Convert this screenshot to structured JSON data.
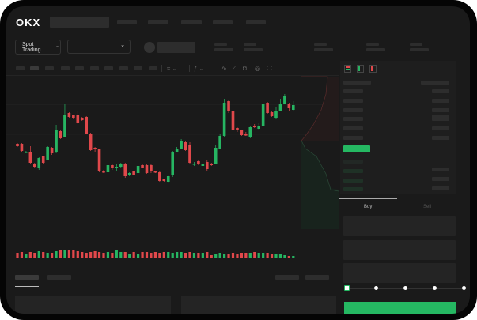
{
  "header": {
    "logo": "OKX",
    "nav_items": [
      "",
      "",
      "",
      "",
      ""
    ]
  },
  "toolbar": {
    "market_selector": "Spot Trading",
    "chevron": "⌄"
  },
  "trade_panel": {
    "tabs": [
      "Buy",
      "Sell"
    ],
    "active_tab": "Buy",
    "slider_value_percent": 0,
    "slider_stops": [
      0,
      25,
      50,
      75,
      100
    ]
  },
  "colors": {
    "up": "#26b562",
    "down": "#e0484b",
    "accent": "#25b862",
    "background": "#1a1a1a"
  },
  "candles": {
    "o": [
      58,
      58,
      47,
      48,
      33,
      27,
      42,
      38,
      53,
      47,
      74,
      67,
      97,
      94,
      94,
      91,
      92,
      71,
      53,
      51,
      23,
      22,
      31,
      27,
      29,
      33,
      18,
      23,
      21,
      31,
      31,
      31,
      23,
      22,
      13,
      10,
      18,
      48,
      52,
      60,
      56,
      32,
      36,
      30,
      35,
      33,
      33,
      52,
      68,
      112,
      99,
      78,
      75,
      70,
      66,
      81,
      77,
      81,
      110,
      98,
      91,
      100,
      109,
      109,
      101
    ],
    "c": [
      55,
      49,
      48,
      34,
      29,
      40,
      34,
      54,
      46,
      75,
      65,
      95,
      92,
      91,
      84,
      88,
      71,
      50,
      51,
      23,
      22,
      31,
      27,
      29,
      33,
      17,
      21,
      19,
      30,
      28,
      21,
      23,
      22,
      11,
      11,
      17,
      47,
      52,
      61,
      50,
      34,
      33,
      32,
      33,
      26,
      31,
      53,
      68,
      110,
      99,
      75,
      75,
      69,
      69,
      79,
      79,
      81,
      108,
      97,
      93,
      100,
      109,
      118,
      103,
      107
    ],
    "h": [
      59,
      59,
      49,
      55,
      34,
      41,
      43,
      55,
      54,
      82,
      76,
      108,
      98,
      95,
      99,
      92,
      93,
      72,
      54,
      52,
      25,
      33,
      33,
      33,
      34,
      34,
      22,
      24,
      31,
      32,
      32,
      32,
      24,
      23,
      14,
      18,
      49,
      54,
      64,
      61,
      60,
      35,
      37,
      34,
      37,
      34,
      56,
      70,
      115,
      113,
      100,
      79,
      76,
      73,
      81,
      83,
      84,
      109,
      111,
      99,
      104,
      115,
      121,
      110,
      112
    ],
    "l": [
      54,
      48,
      46,
      33,
      28,
      25,
      33,
      37,
      44,
      46,
      64,
      66,
      91,
      89,
      83,
      87,
      70,
      49,
      48,
      22,
      21,
      21,
      25,
      24,
      28,
      15,
      17,
      18,
      20,
      27,
      20,
      21,
      21,
      10,
      10,
      9,
      16,
      47,
      51,
      49,
      32,
      30,
      31,
      29,
      24,
      30,
      32,
      51,
      67,
      97,
      72,
      73,
      68,
      68,
      65,
      78,
      76,
      80,
      96,
      92,
      90,
      99,
      108,
      100,
      100
    ],
    "volume": [
      6,
      7,
      5,
      7,
      6,
      8,
      7,
      6,
      6,
      8,
      10,
      9,
      10,
      9,
      8,
      7,
      6,
      7,
      8,
      7,
      6,
      7,
      6,
      10,
      7,
      7,
      5,
      7,
      5,
      7,
      7,
      6,
      7,
      6,
      7,
      7,
      6,
      7,
      7,
      6,
      7,
      6,
      6,
      6,
      7,
      3,
      5,
      6,
      5,
      5,
      6,
      5,
      6,
      6,
      6,
      7,
      6,
      6,
      6,
      5,
      5,
      4,
      3,
      2,
      2
    ]
  }
}
